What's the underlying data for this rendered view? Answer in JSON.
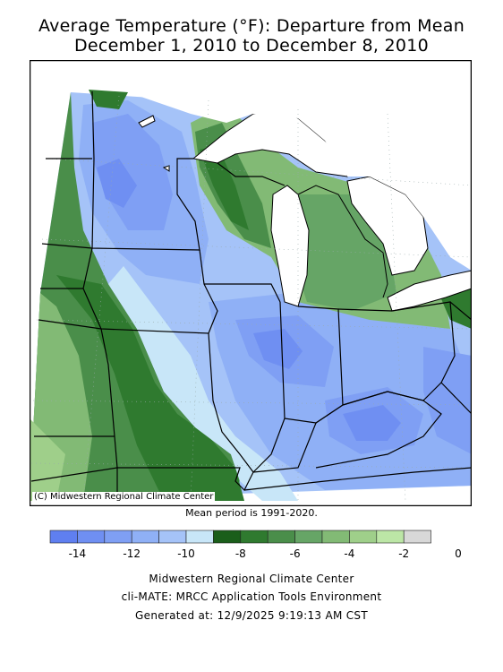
{
  "title_line1": "Average Temperature (°F): Departure from Mean",
  "title_line2": "December 1, 2010 to December 8, 2010",
  "copyright": "(C) Midwestern Regional Climate Center",
  "mean_note": "Mean period is 1991-2020.",
  "legend": {
    "colors": [
      "#5f7ff0",
      "#6f8ff2",
      "#7f9ff4",
      "#8fb0f6",
      "#a5c3f8",
      "#c8e6f8",
      "#1a5e1a",
      "#2f7a2f",
      "#4a8e4a",
      "#66a566",
      "#82ba75",
      "#9fcf8a",
      "#bce6a6",
      "#d8d8d8"
    ],
    "tick_labels": [
      "-14",
      "-12",
      "-10",
      "-8",
      "-6",
      "-4",
      "-2",
      "0"
    ]
  },
  "footer": {
    "org": "Midwestern Regional Climate Center",
    "tool": "cli-MATE: MRCC Application Tools Environment",
    "generated": "Generated at: 12/9/2025 9:19:13 AM CST"
  }
}
